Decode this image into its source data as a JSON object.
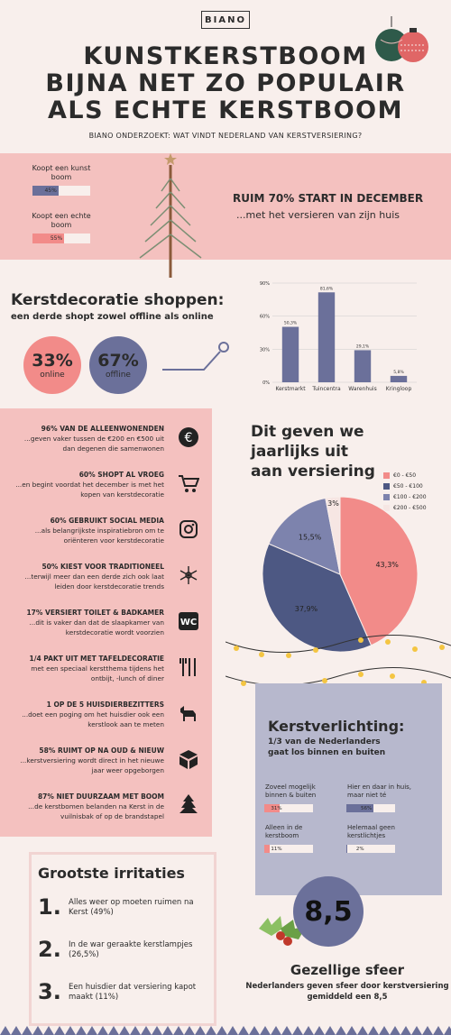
{
  "header": {
    "logo": "BIANO",
    "title_lines": [
      "KUNSTKERSTBOOM",
      "BIJNA NET ZO POPULAIR",
      "ALS ECHTE KERSTBOOM"
    ],
    "subtitle": "BIANO ONDERZOEKT: WAT VINDT NEDERLAND VAN KERSTVERSIERING?"
  },
  "trees": {
    "kunst_label": "Koopt een kunst boom",
    "kunst_value": "45%",
    "kunst_pct": 45,
    "echt_label": "Koopt een echte boom",
    "echt_value": "55%",
    "echt_pct": 55,
    "headline": "RUIM 70% START IN DECEMBER",
    "sub": "...met het versieren van zijn huis"
  },
  "shopping": {
    "title": "Kerstdecoratie shoppen:",
    "subtitle": "een derde shopt zowel offline als online",
    "online_value": "33%",
    "online_label": "online",
    "offline_value": "67%",
    "offline_label": "offline"
  },
  "chart_data": {
    "type": "bar",
    "categories": [
      "Kerstmarkt",
      "Tuincentra",
      "Warenhuis",
      "Kringloop"
    ],
    "values": [
      50.3,
      81.6,
      29.1,
      5.8
    ],
    "value_labels": [
      "50,3%",
      "81,6%",
      "29,1%",
      "5,8%"
    ],
    "ylim": [
      0,
      90
    ],
    "yticks": [
      "0%",
      "30%",
      "60%",
      "90%"
    ],
    "grid": true,
    "color": "#6b709a"
  },
  "facts": [
    {
      "title": "96% VAN DE ALLEENWONENDEN",
      "text": "...geven vaker tussen de €200 en €500 uit dan degenen die samenwonen",
      "icon": "euro-icon"
    },
    {
      "title": "60% SHOPT AL VROEG",
      "text": "...en begint voordat het december is met het kopen van kerstdecoratie",
      "icon": "cart-icon"
    },
    {
      "title": "60% GEBRUIKT SOCIAL MEDIA",
      "text": "...als belangrijkste inspiratiebron om te oriënteren voor kerstdecoratie",
      "icon": "instagram-icon"
    },
    {
      "title": "50% KIEST VOOR TRADITIONEEL",
      "text": "...terwijl meer dan een derde zich ook laat leiden door kerstdecoratie trends",
      "icon": "snowflake-icon"
    },
    {
      "title": "17% VERSIERT TOILET & BADKAMER",
      "text": "...dit is vaker dan dat de slaapkamer van kerstdecoratie wordt voorzien",
      "icon": "wc-icon"
    },
    {
      "title": "1/4 PAKT UIT MET TAFELDECORATIE",
      "text": "met een speciaal kerstthema tijdens het ontbijt, -lunch of diner",
      "icon": "cutlery-icon"
    },
    {
      "title": "1 OP DE 5 HUISDIERBEZITTERS",
      "text": "...doet een poging om het huisdier ook een kerstlook aan te meten",
      "icon": "dog-icon"
    },
    {
      "title": "58% RUIMT OP NA OUD & NIEUW",
      "text": "...kerstversiering wordt direct in het nieuwe jaar weer opgeborgen",
      "icon": "box-icon"
    },
    {
      "title": "87% NIET DUURZAAM MET BOOM",
      "text": "...de kerstbomen belanden na Kerst in de vuilnisbak of op de brandstapel",
      "icon": "tree-icon"
    }
  ],
  "spending": {
    "title_lines": [
      "Dit geven we",
      "jaarlijks uit",
      "aan versiering"
    ],
    "pie": [
      {
        "label": "€0 - €50",
        "value": 43.3,
        "text": "43,3%",
        "color": "#f28b89"
      },
      {
        "label": "€50 - €100",
        "value": 37.9,
        "text": "37,9%",
        "color": "#4d5883"
      },
      {
        "label": "€100 - €200",
        "value": 15.5,
        "text": "15,5%",
        "color": "#7d83ad"
      },
      {
        "label": "€200 - €500",
        "value": 3,
        "text": "3%",
        "color": "#f6e6e3"
      }
    ]
  },
  "lighting": {
    "title": "Kerstverlichting:",
    "subtitle_lines": [
      "1/3 van de Nederlanders",
      "gaat los binnen en buiten"
    ],
    "bars": [
      {
        "label": "Zoveel mogelijk binnen & buiten",
        "value": "31%",
        "pct": 31,
        "color": "#f28b89"
      },
      {
        "label": "Hier en daar in huis, maar niet té",
        "value": "56%",
        "pct": 56,
        "color": "#6b709a"
      },
      {
        "label": "Alleen in de kerstboom",
        "value": "11%",
        "pct": 11,
        "color": "#f28b89"
      },
      {
        "label": "Helemaal geen kerstlichtjes",
        "value": "2%",
        "pct": 2,
        "color": "#6b709a"
      }
    ]
  },
  "irritations": {
    "title": "Grootste irritaties",
    "items": [
      {
        "num": "1.",
        "text": "Alles weer op moeten ruimen na Kerst (49%)"
      },
      {
        "num": "2.",
        "text": "In de war geraakte kerstlampjes (26,5%)"
      },
      {
        "num": "3.",
        "text": "Een huisdier dat versiering kapot maakt (11%)"
      }
    ]
  },
  "sfeer": {
    "score": "8,5",
    "title": "Gezellige sfeer",
    "text": "Nederlanders geven sfeer door kerstversiering gemiddeld een 8,5"
  }
}
